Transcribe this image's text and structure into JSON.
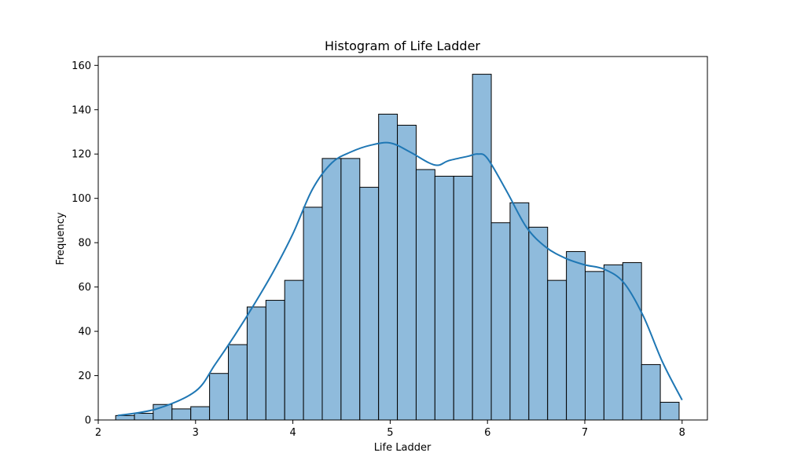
{
  "chart_data": {
    "type": "bar",
    "title": "Histogram of Life Ladder",
    "xlabel": "Life Ladder",
    "ylabel": "Frequency",
    "xlim": [
      2.0,
      8.26
    ],
    "ylim": [
      0,
      164
    ],
    "xticks": [
      2,
      3,
      4,
      5,
      6,
      7,
      8
    ],
    "yticks": [
      0,
      20,
      40,
      60,
      80,
      100,
      120,
      140,
      160
    ],
    "grid": false,
    "legend": "none",
    "bin_start": 2.179,
    "bin_width": 0.193,
    "values": [
      2,
      3,
      7,
      5,
      6,
      21,
      34,
      51,
      54,
      63,
      96,
      118,
      118,
      105,
      138,
      133,
      113,
      110,
      110,
      156,
      89,
      98,
      87,
      63,
      76,
      67,
      70,
      71,
      25,
      8
    ],
    "kde": {
      "x": [
        2.2,
        2.6,
        3.0,
        3.2,
        3.4,
        3.6,
        3.8,
        4.0,
        4.2,
        4.4,
        4.6,
        4.8,
        5.0,
        5.2,
        5.4,
        5.5,
        5.6,
        5.8,
        5.9,
        6.0,
        6.2,
        6.4,
        6.6,
        6.8,
        7.0,
        7.2,
        7.4,
        7.6,
        7.8,
        8.0
      ],
      "y": [
        2,
        5,
        13,
        25,
        38,
        52,
        67,
        84,
        104,
        116,
        121,
        124,
        125,
        121,
        116,
        115,
        117,
        119,
        120,
        118,
        103,
        87,
        78,
        73,
        70,
        68,
        62,
        47,
        26,
        9
      ]
    },
    "colors": {
      "bar_fill": "#8fbbdc",
      "bar_edge": "#000000",
      "kde_line": "#1f77b4"
    }
  }
}
